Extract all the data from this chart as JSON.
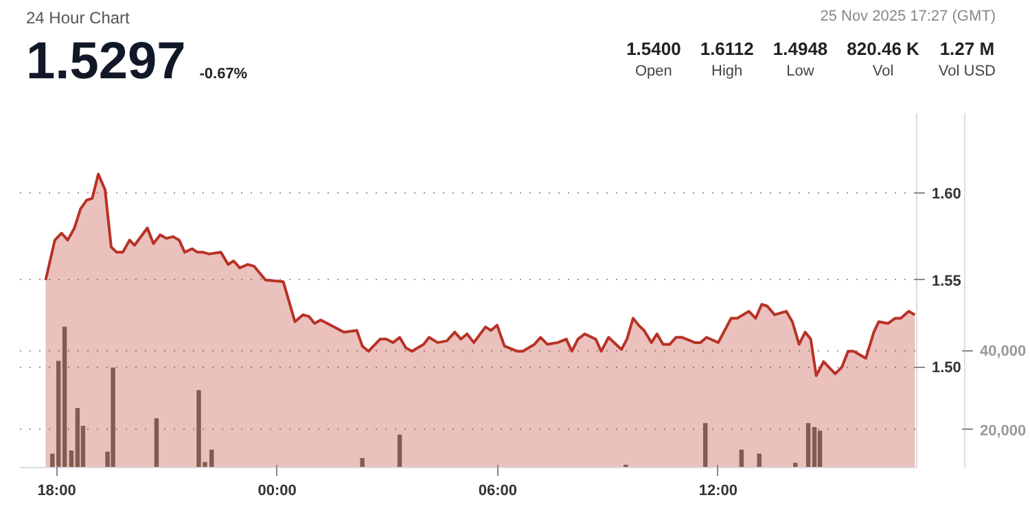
{
  "chart_data": {
    "type": "area",
    "title": "24 Hour Chart",
    "subtitle": "1.5297",
    "annotations": [
      "-0.67%",
      "25 Nov 2025 17:27 (GMT)",
      "1.5400",
      "Open",
      "1.6112",
      "High",
      "1.4948",
      "Low",
      "820.46 K",
      "Vol",
      "1.27 M",
      "Vol USD"
    ],
    "xlim": [
      "2025-11-24T17:00",
      "2025-11-25T17:24"
    ],
    "xticks": [
      {
        "value": "2025-11-24T18:00",
        "label": "18:00"
      },
      {
        "value": "2025-11-25T00:00",
        "label": "00:00"
      },
      {
        "value": "2025-11-25T06:00",
        "label": "06:00"
      },
      {
        "value": "2025-11-25T12:00",
        "label": "12:00"
      }
    ],
    "ylim": [
      1.442,
      1.646
    ],
    "yticks": [
      {
        "value": 1.5,
        "label": "1.50"
      },
      {
        "value": 1.55,
        "label": "1.55"
      },
      {
        "value": 1.6,
        "label": "1.60"
      }
    ],
    "y2lim": [
      10480,
      99760
    ],
    "y2ticks": [
      {
        "value": 20000,
        "label": "20,000"
      },
      {
        "value": 40000,
        "label": "40,000"
      }
    ],
    "grid": "y",
    "line_style": "dotted",
    "series": [
      {
        "color": "#b83226",
        "x": [
          "2025-11-24T17:42",
          "2025-11-24T17:57",
          "2025-11-24T18:08",
          "2025-11-24T18:18",
          "2025-11-24T18:29",
          "2025-11-24T18:39",
          "2025-11-24T18:49",
          "2025-11-24T18:58",
          "2025-11-24T19:08",
          "2025-11-24T19:19",
          "2025-11-24T19:29",
          "2025-11-24T19:38",
          "2025-11-24T19:48",
          "2025-11-24T19:59",
          "2025-11-24T20:07",
          "2025-11-24T20:28",
          "2025-11-24T20:38",
          "2025-11-24T20:49",
          "2025-11-24T20:59",
          "2025-11-24T21:10",
          "2025-11-24T21:20",
          "2025-11-24T21:29",
          "2025-11-24T21:41",
          "2025-11-24T21:50",
          "2025-11-24T21:59",
          "2025-11-24T22:09",
          "2025-11-24T22:28",
          "2025-11-24T22:40",
          "2025-11-24T22:49",
          "2025-11-24T22:59",
          "2025-11-24T23:12",
          "2025-11-24T23:22",
          "2025-11-24T23:41",
          "2025-11-25T00:10",
          "2025-11-25T00:29",
          "2025-11-25T00:42",
          "2025-11-25T00:52",
          "2025-11-25T01:01",
          "2025-11-25T01:11",
          "2025-11-25T01:22",
          "2025-11-25T01:49",
          "2025-11-25T02:10",
          "2025-11-25T02:19",
          "2025-11-25T02:29",
          "2025-11-25T02:48",
          "2025-11-25T02:58",
          "2025-11-25T03:09",
          "2025-11-25T03:20",
          "2025-11-25T03:30",
          "2025-11-25T03:40",
          "2025-11-25T03:59",
          "2025-11-25T04:08",
          "2025-11-25T04:22",
          "2025-11-25T04:37",
          "2025-11-25T04:50",
          "2025-11-25T05:00",
          "2025-11-25T05:10",
          "2025-11-25T05:21",
          "2025-11-25T05:40",
          "2025-11-25T05:49",
          "2025-11-25T05:59",
          "2025-11-25T06:11",
          "2025-11-25T06:32",
          "2025-11-25T06:41",
          "2025-11-25T07:00",
          "2025-11-25T07:10",
          "2025-11-25T07:21",
          "2025-11-25T07:38",
          "2025-11-25T07:52",
          "2025-11-25T08:01",
          "2025-11-25T08:11",
          "2025-11-25T08:22",
          "2025-11-25T08:40",
          "2025-11-25T08:49",
          "2025-11-25T09:01",
          "2025-11-25T09:22",
          "2025-11-25T09:31",
          "2025-11-25T09:41",
          "2025-11-25T09:50",
          "2025-11-25T09:59",
          "2025-11-25T10:11",
          "2025-11-25T10:20",
          "2025-11-25T10:30",
          "2025-11-25T10:41",
          "2025-11-25T10:51",
          "2025-11-25T11:01",
          "2025-11-25T11:22",
          "2025-11-25T11:31",
          "2025-11-25T11:41",
          "2025-11-25T12:00",
          "2025-11-25T12:21",
          "2025-11-25T12:31",
          "2025-11-25T12:50",
          "2025-11-25T13:01",
          "2025-11-25T13:11",
          "2025-11-25T13:20",
          "2025-11-25T13:32",
          "2025-11-25T13:51",
          "2025-11-25T14:01",
          "2025-11-25T14:12",
          "2025-11-25T14:22",
          "2025-11-25T14:31",
          "2025-11-25T14:40",
          "2025-11-25T14:52",
          "2025-11-25T15:11",
          "2025-11-25T15:22",
          "2025-11-25T15:32",
          "2025-11-25T15:41",
          "2025-11-25T16:01",
          "2025-11-25T16:14",
          "2025-11-25T16:22",
          "2025-11-25T16:37",
          "2025-11-25T16:49",
          "2025-11-25T16:58",
          "2025-11-25T17:11",
          "2025-11-25T17:21"
        ],
        "values": [
          1.55,
          1.573,
          1.577,
          1.573,
          1.58,
          1.591,
          1.596,
          1.597,
          1.611,
          1.602,
          1.569,
          1.566,
          1.566,
          1.573,
          1.57,
          1.58,
          1.571,
          1.576,
          1.574,
          1.575,
          1.573,
          1.566,
          1.568,
          1.566,
          1.566,
          1.565,
          1.566,
          1.559,
          1.561,
          1.557,
          1.559,
          1.558,
          1.55,
          1.549,
          1.526,
          1.53,
          1.529,
          1.525,
          1.527,
          1.525,
          1.52,
          1.521,
          1.512,
          1.509,
          1.516,
          1.516,
          1.514,
          1.517,
          1.511,
          1.509,
          1.513,
          1.517,
          1.514,
          1.515,
          1.52,
          1.516,
          1.519,
          1.514,
          1.523,
          1.521,
          1.524,
          1.512,
          1.509,
          1.509,
          1.513,
          1.517,
          1.513,
          1.514,
          1.516,
          1.509,
          1.516,
          1.519,
          1.516,
          1.509,
          1.517,
          1.51,
          1.516,
          1.528,
          1.524,
          1.521,
          1.514,
          1.519,
          1.513,
          1.513,
          1.517,
          1.517,
          1.514,
          1.514,
          1.517,
          1.514,
          1.528,
          1.528,
          1.532,
          1.528,
          1.536,
          1.535,
          1.53,
          1.532,
          1.526,
          1.513,
          1.52,
          1.516,
          1.495,
          1.503,
          1.496,
          1.5,
          1.509,
          1.509,
          1.505,
          1.52,
          1.526,
          1.525,
          1.528,
          1.528,
          1.532,
          1.53
        ]
      },
      {
        "type": "bar",
        "axis": "y2",
        "color": "#6e6e66",
        "x": [
          "2025-11-24T17:53",
          "2025-11-24T18:03",
          "2025-11-24T18:13",
          "2025-11-24T18:24",
          "2025-11-24T18:34",
          "2025-11-24T18:43",
          "2025-11-24T19:23",
          "2025-11-24T19:32",
          "2025-11-24T20:43",
          "2025-11-24T21:52",
          "2025-11-24T22:02",
          "2025-11-24T22:13",
          "2025-11-25T02:19",
          "2025-11-25T03:20",
          "2025-11-25T09:29",
          "2025-11-25T11:39",
          "2025-11-25T12:38",
          "2025-11-25T13:07",
          "2025-11-25T14:06",
          "2025-11-25T14:27",
          "2025-11-25T14:37",
          "2025-11-25T14:46"
        ],
        "values": [
          14000,
          37400,
          46000,
          14800,
          25500,
          21000,
          14500,
          35700,
          22900,
          30000,
          11900,
          15000,
          12900,
          18800,
          11200,
          21700,
          15000,
          14000,
          11700,
          21700,
          20700,
          19800
        ]
      }
    ]
  }
}
